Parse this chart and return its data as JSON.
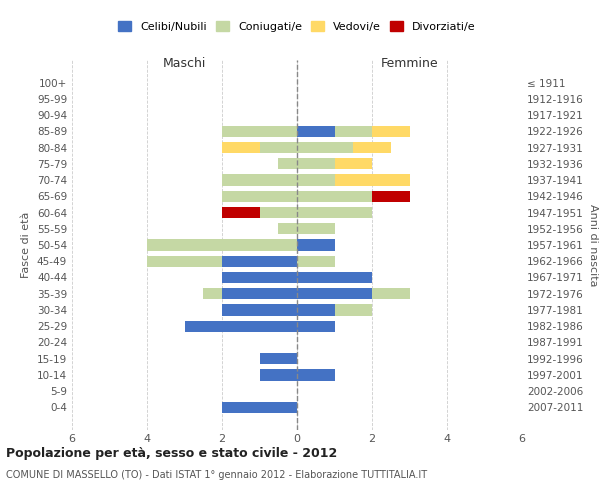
{
  "age_groups": [
    "0-4",
    "5-9",
    "10-14",
    "15-19",
    "20-24",
    "25-29",
    "30-34",
    "35-39",
    "40-44",
    "45-49",
    "50-54",
    "55-59",
    "60-64",
    "65-69",
    "70-74",
    "75-79",
    "80-84",
    "85-89",
    "90-94",
    "95-99",
    "100+"
  ],
  "birth_years": [
    "2007-2011",
    "2002-2006",
    "1997-2001",
    "1992-1996",
    "1987-1991",
    "1982-1986",
    "1977-1981",
    "1972-1976",
    "1967-1971",
    "1962-1966",
    "1957-1961",
    "1952-1956",
    "1947-1951",
    "1942-1946",
    "1937-1941",
    "1932-1936",
    "1927-1931",
    "1922-1926",
    "1917-1921",
    "1912-1916",
    "≤ 1911"
  ],
  "colors": {
    "celibi": "#4472C4",
    "coniugati": "#c5d8a4",
    "vedovi": "#FFD966",
    "divorziati": "#C00000"
  },
  "males": {
    "celibi": [
      2,
      0,
      1,
      1,
      0,
      3,
      2,
      2,
      2,
      2,
      0,
      0,
      0,
      0,
      0,
      0,
      0,
      0,
      0,
      0,
      0
    ],
    "coniugati": [
      0,
      0,
      0,
      0,
      0,
      0,
      0,
      0.5,
      0,
      2,
      4,
      0.5,
      1,
      2,
      2,
      0.5,
      1,
      2,
      0,
      0,
      0
    ],
    "vedovi": [
      0,
      0,
      0,
      0,
      0,
      0,
      0,
      0,
      0,
      0,
      0,
      0,
      0,
      0,
      0,
      0,
      1,
      0,
      0,
      0,
      0
    ],
    "divorziati": [
      0,
      0,
      0,
      0,
      0,
      0,
      0,
      0,
      0,
      0,
      0,
      0,
      1,
      0,
      0,
      0,
      0,
      0,
      0,
      0,
      0
    ]
  },
  "females": {
    "celibi": [
      0,
      0,
      1,
      0,
      0,
      1,
      1,
      2,
      2,
      0,
      1,
      0,
      0,
      0,
      0,
      0,
      0,
      1,
      0,
      0,
      0
    ],
    "coniugati": [
      0,
      0,
      0,
      0,
      0,
      0,
      1,
      1,
      0,
      1,
      0,
      1,
      2,
      2,
      1,
      1,
      1.5,
      1,
      0,
      0,
      0
    ],
    "vedovi": [
      0,
      0,
      0,
      0,
      0,
      0,
      0,
      0,
      0,
      0,
      0,
      0,
      0,
      0,
      2,
      1,
      1,
      1,
      0,
      0,
      0
    ],
    "divorziati": [
      0,
      0,
      0,
      0,
      0,
      0,
      0,
      0,
      0,
      0,
      0,
      0,
      0,
      1,
      0,
      0,
      0,
      0,
      0,
      0,
      0
    ]
  },
  "xlim": [
    -6,
    6
  ],
  "xticks": [
    -6,
    -4,
    -2,
    0,
    2,
    4,
    6
  ],
  "xticklabels": [
    "6",
    "4",
    "2",
    "0",
    "2",
    "4",
    "6"
  ],
  "title": "Popolazione per età, sesso e stato civile - 2012",
  "subtitle": "COMUNE DI MASSELLO (TO) - Dati ISTAT 1° gennaio 2012 - Elaborazione TUTTITALIA.IT",
  "ylabel_left": "Fasce di età",
  "ylabel_right": "Anni di nascita",
  "label_maschi": "Maschi",
  "label_femmine": "Femmine",
  "legend_labels": [
    "Celibi/Nubili",
    "Coniugati/e",
    "Vedovi/e",
    "Divorziati/e"
  ],
  "background_color": "#ffffff",
  "grid_color": "#cccccc"
}
